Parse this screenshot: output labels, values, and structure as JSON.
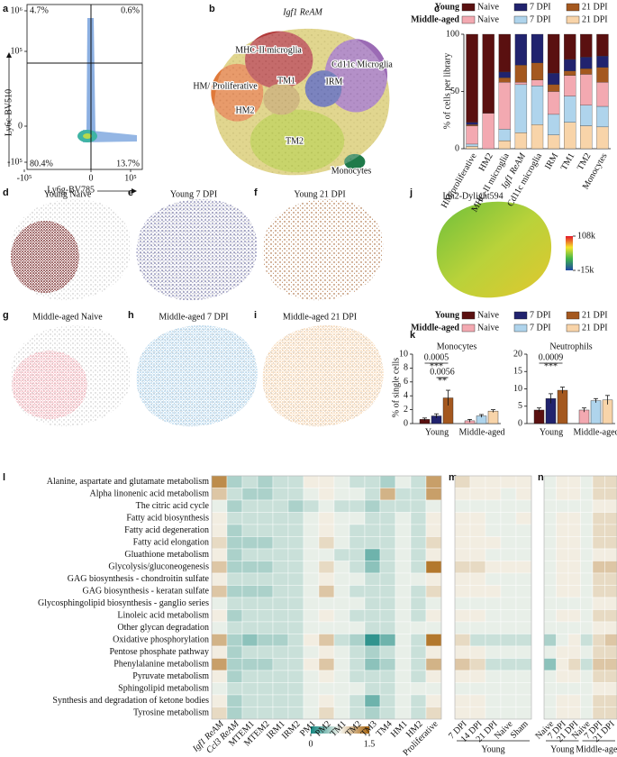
{
  "panels": {
    "a": {
      "label": "a",
      "xlabel": "Ly6g-BV785",
      "ylabel": "Ly6c-BV510",
      "xticks": [
        {
          "value": -100000,
          "label": "-10⁵"
        },
        0,
        {
          "value": 100000,
          "label": "10⁵"
        }
      ],
      "yticks": [
        {
          "value": 1000000,
          "label": "10⁶"
        },
        {
          "value": 100000,
          "label": "10⁵"
        },
        0,
        {
          "value": -100000,
          "label": "-10⁵"
        }
      ],
      "quadrants": {
        "values": [
          4.7,
          0.6,
          80.4,
          13.7
        ],
        "value_labels": [
          "4.7%",
          "0.6%",
          "80.4%",
          "13.7%"
        ]
      }
    },
    "b": {
      "label": "b",
      "clusters": [
        "Igf1 ReAM",
        "MHC-II microglia",
        "Cd11c Microglia",
        "HM/ Proliferative",
        "TM1",
        "IRM",
        "HM2",
        "TM2",
        "Monocytes"
      ]
    },
    "c": {
      "label": "c",
      "type": "bar",
      "stacked": true,
      "ylabel": "% of cells per library",
      "groups": [
        "Young",
        "Middle-aged"
      ],
      "categories": [
        "HM/proliferative",
        "HM2",
        "MHC-II microglia",
        "Igf1 ReAM",
        "Cd11c microglia",
        "IRM",
        "TM1",
        "TM2",
        "Monocytes"
      ],
      "ylim": [
        0,
        100
      ],
      "yticks": [
        0,
        50,
        100
      ],
      "series": [
        {
          "name": "Naive",
          "group": "Young",
          "color": "#5a1010",
          "values": [
            77,
            69,
            33,
            0,
            0,
            34,
            22,
            20,
            19
          ]
        },
        {
          "name": "7 DPI",
          "group": "Young",
          "color": "#21236e",
          "values": [
            2,
            0,
            5,
            27,
            25,
            10,
            10,
            10,
            10
          ]
        },
        {
          "name": "21 DPI",
          "group": "Young",
          "color": "#a4581f",
          "values": [
            1,
            0,
            4,
            15,
            15,
            6,
            4,
            5,
            13
          ]
        },
        {
          "name": "Naive",
          "group": "Middle-aged",
          "color": "#f3a9b1",
          "values": [
            16,
            31,
            41,
            2,
            5,
            20,
            18,
            27,
            21
          ]
        },
        {
          "name": "7 DPI",
          "group": "Middle-aged",
          "color": "#afd4ec",
          "values": [
            2,
            0,
            10,
            42,
            34,
            18,
            23,
            18,
            18
          ]
        },
        {
          "name": "21 DPI",
          "group": "Middle-aged",
          "color": "#f8d4a9",
          "values": [
            2,
            0,
            7,
            14,
            21,
            12,
            23,
            20,
            19
          ]
        }
      ]
    },
    "d": {
      "label": "d",
      "title": "Young Naive"
    },
    "e": {
      "label": "e",
      "title": "Young 7 DPI"
    },
    "f": {
      "label": "f",
      "title": "Young 21 DPI"
    },
    "g": {
      "label": "g",
      "title": "Middle-aged Naive"
    },
    "h": {
      "label": "h",
      "title": "Middle-aged 7 DPI"
    },
    "i": {
      "label": "i",
      "title": "Middle-aged 21 DPI"
    },
    "j": {
      "label": "j",
      "title": "Idh2-Dylight594",
      "colorbar_ticks": [
        {
          "value": 108000,
          "label": "108k"
        },
        {
          "value": -15000,
          "label": "-15k"
        }
      ],
      "colorbar_lim": [
        -15000,
        108000
      ]
    },
    "k": {
      "label": "k",
      "type": "bar",
      "ylabel": "% of single cells",
      "categories": [
        "Young",
        "Middle-aged"
      ],
      "charts": [
        {
          "title": "Monocytes",
          "ylim": [
            0,
            10
          ],
          "yticks": [
            0,
            2,
            4,
            6,
            8,
            10
          ],
          "values": [
            0.6,
            1.1,
            3.7,
            0.4,
            1.1,
            1.8
          ],
          "errors": [
            0.2,
            0.3,
            1.1,
            0.2,
            0.2,
            0.2
          ],
          "pvalues": [
            0.0005,
            0.0056
          ],
          "stars": [
            "***",
            "**"
          ]
        },
        {
          "title": "Neutrophils",
          "ylim": [
            0,
            20
          ],
          "yticks": [
            0,
            5,
            10,
            15,
            20
          ],
          "values": [
            3.9,
            7.2,
            9.6,
            3.9,
            6.6,
            6.8
          ],
          "errors": [
            0.6,
            1.4,
            0.9,
            0.6,
            0.6,
            1.3
          ],
          "pvalues": [
            0.0009
          ],
          "stars": [
            "***"
          ]
        }
      ]
    },
    "l": {
      "label": "l",
      "type": "heatmap",
      "colorbar_lim": [
        0,
        1.5
      ],
      "colorbar_ticks": [
        0,
        1.5
      ],
      "rows": [
        "Alanine, aspartate and glutamate metabolism",
        "Alpha linonenic acid metabolism",
        "The citric acid cycle",
        "Fatty acid biosynthesis",
        "Fatty acid degeneration",
        "Fatty acid elongation",
        "Gluathione metabolism",
        "Glycolysis/gluconeogenesis",
        "GAG biosynthesis - chondroitin sulfate",
        "GAG biosynthesis - keratan sulfate",
        "Glycosphingolipid biosynthesis - ganglio series",
        "Linoleic acid metabolism",
        "Other glycan degradation",
        "Oxidative phosphorylation",
        "Pentose phosphate pathway",
        "Phenylalanine metabolism",
        "Pyruvate metabolism",
        "Sphingolipid metabolism",
        "Synthesis and degradation of ketone bodies",
        "Tyrosine metabolism"
      ],
      "columns": [
        "Igf1 ReAM",
        "Ccl3 ReAM",
        "MTEM1",
        "MTEM2",
        "IRM1",
        "IRM2",
        "PM1",
        "PM2",
        "TM1",
        "TM2",
        "TM3",
        "TM4",
        "HM1",
        "HM2",
        "Proliferative"
      ],
      "values": [
        [
          1.3,
          0.5,
          0.6,
          0.5,
          0.6,
          0.6,
          0.8,
          0.8,
          0.7,
          0.6,
          0.6,
          0.5,
          0.7,
          0.6,
          1.2
        ],
        [
          1.0,
          0.6,
          0.5,
          0.5,
          0.6,
          0.6,
          0.7,
          0.8,
          0.7,
          0.7,
          0.6,
          1.1,
          0.6,
          0.6,
          1.2
        ],
        [
          0.7,
          0.5,
          0.6,
          0.6,
          0.6,
          0.5,
          0.6,
          0.7,
          0.6,
          0.6,
          0.5,
          0.6,
          0.6,
          0.6,
          0.7
        ],
        [
          0.8,
          0.6,
          0.6,
          0.6,
          0.6,
          0.6,
          0.7,
          0.8,
          0.7,
          0.7,
          0.6,
          0.6,
          0.7,
          0.6,
          0.8
        ],
        [
          0.8,
          0.5,
          0.6,
          0.6,
          0.6,
          0.6,
          0.7,
          0.8,
          0.7,
          0.6,
          0.6,
          0.6,
          0.7,
          0.6,
          0.8
        ],
        [
          0.9,
          0.5,
          0.5,
          0.5,
          0.6,
          0.6,
          0.7,
          0.9,
          0.7,
          0.6,
          0.6,
          0.6,
          0.7,
          0.6,
          0.9
        ],
        [
          0.8,
          0.5,
          0.6,
          0.6,
          0.6,
          0.6,
          0.7,
          0.7,
          0.6,
          0.6,
          0.3,
          0.6,
          0.7,
          0.6,
          0.8
        ],
        [
          1.0,
          0.5,
          0.5,
          0.5,
          0.6,
          0.6,
          0.7,
          0.9,
          0.7,
          0.6,
          0.4,
          0.6,
          0.7,
          0.6,
          1.4
        ],
        [
          0.8,
          0.6,
          0.6,
          0.6,
          0.6,
          0.6,
          0.7,
          0.8,
          0.7,
          0.7,
          0.6,
          0.6,
          0.7,
          0.7,
          0.8
        ],
        [
          1.0,
          0.5,
          0.5,
          0.5,
          0.6,
          0.6,
          0.7,
          1.0,
          0.7,
          0.6,
          0.6,
          0.6,
          0.7,
          0.6,
          0.9
        ],
        [
          0.7,
          0.6,
          0.6,
          0.6,
          0.6,
          0.6,
          0.7,
          0.7,
          0.7,
          0.7,
          0.6,
          0.6,
          0.7,
          0.6,
          0.7
        ],
        [
          0.8,
          0.5,
          0.6,
          0.6,
          0.6,
          0.6,
          0.7,
          0.8,
          0.7,
          0.6,
          0.6,
          0.6,
          0.7,
          0.6,
          0.8
        ],
        [
          0.7,
          0.6,
          0.6,
          0.6,
          0.6,
          0.6,
          0.7,
          0.7,
          0.7,
          0.7,
          0.6,
          0.6,
          0.7,
          0.7,
          0.7
        ],
        [
          1.1,
          0.5,
          0.4,
          0.5,
          0.5,
          0.6,
          0.8,
          1.0,
          0.6,
          0.5,
          0.1,
          0.3,
          0.7,
          0.6,
          1.4
        ],
        [
          0.8,
          0.5,
          0.6,
          0.6,
          0.6,
          0.6,
          0.7,
          0.8,
          0.7,
          0.6,
          0.5,
          0.6,
          0.7,
          0.6,
          0.8
        ],
        [
          1.2,
          0.5,
          0.5,
          0.5,
          0.6,
          0.6,
          0.8,
          1.0,
          0.7,
          0.6,
          0.4,
          0.5,
          0.7,
          0.6,
          1.1
        ],
        [
          0.8,
          0.5,
          0.6,
          0.6,
          0.6,
          0.6,
          0.7,
          0.8,
          0.7,
          0.6,
          0.6,
          0.6,
          0.7,
          0.6,
          0.8
        ],
        [
          0.7,
          0.6,
          0.6,
          0.6,
          0.6,
          0.6,
          0.7,
          0.7,
          0.7,
          0.7,
          0.6,
          0.6,
          0.7,
          0.7,
          0.7
        ],
        [
          0.8,
          0.5,
          0.6,
          0.6,
          0.6,
          0.6,
          0.7,
          0.8,
          0.7,
          0.6,
          0.3,
          0.6,
          0.7,
          0.6,
          0.8
        ],
        [
          0.9,
          0.5,
          0.6,
          0.6,
          0.6,
          0.6,
          0.7,
          0.9,
          0.7,
          0.6,
          0.5,
          0.6,
          0.7,
          0.6,
          0.9
        ]
      ]
    },
    "m": {
      "label": "m",
      "columns": [
        "7 DPI",
        "14 DPI",
        "21 DPI",
        "Naive",
        "Sham"
      ],
      "groups": [
        "Young"
      ],
      "values": [
        [
          0.9,
          0.8,
          0.8,
          0.8,
          0.8
        ],
        [
          0.8,
          0.8,
          0.8,
          0.7,
          0.8
        ],
        [
          0.7,
          0.7,
          0.7,
          0.7,
          0.7
        ],
        [
          0.8,
          0.8,
          0.7,
          0.7,
          0.8
        ],
        [
          0.8,
          0.8,
          0.7,
          0.7,
          0.7
        ],
        [
          0.8,
          0.8,
          0.8,
          0.7,
          0.7
        ],
        [
          0.8,
          0.8,
          0.7,
          0.7,
          0.7
        ],
        [
          0.9,
          0.9,
          0.8,
          0.8,
          0.8
        ],
        [
          0.8,
          0.8,
          0.7,
          0.7,
          0.7
        ],
        [
          0.8,
          0.8,
          0.8,
          0.7,
          0.7
        ],
        [
          0.7,
          0.7,
          0.7,
          0.7,
          0.7
        ],
        [
          0.8,
          0.8,
          0.7,
          0.7,
          0.7
        ],
        [
          0.7,
          0.7,
          0.7,
          0.7,
          0.7
        ],
        [
          0.9,
          0.6,
          0.6,
          0.6,
          0.6
        ],
        [
          0.8,
          0.8,
          0.7,
          0.7,
          0.7
        ],
        [
          1.0,
          0.9,
          0.6,
          0.6,
          0.6
        ],
        [
          0.8,
          0.8,
          0.7,
          0.7,
          0.7
        ],
        [
          0.7,
          0.7,
          0.7,
          0.7,
          0.7
        ],
        [
          0.8,
          0.8,
          0.7,
          0.7,
          0.7
        ],
        [
          0.8,
          0.8,
          0.7,
          0.7,
          0.7
        ]
      ]
    },
    "n": {
      "label": "n",
      "columns": [
        "Naive",
        "7 DPI",
        "21 DPI",
        "Naive",
        "7 DPI",
        "21 DPI"
      ],
      "groups": [
        "Young",
        "Middle-aged"
      ],
      "values": [
        [
          0.7,
          0.8,
          0.8,
          0.7,
          0.9,
          0.9
        ],
        [
          0.7,
          0.8,
          0.8,
          0.7,
          0.9,
          0.9
        ],
        [
          0.7,
          0.7,
          0.7,
          0.7,
          0.8,
          0.8
        ],
        [
          0.7,
          0.8,
          0.8,
          0.7,
          0.9,
          0.9
        ],
        [
          0.7,
          0.8,
          0.8,
          0.7,
          0.9,
          0.9
        ],
        [
          0.7,
          0.8,
          0.8,
          0.7,
          0.9,
          0.9
        ],
        [
          0.7,
          0.8,
          0.8,
          0.7,
          0.8,
          0.8
        ],
        [
          0.7,
          0.8,
          0.8,
          0.7,
          1.0,
          1.0
        ],
        [
          0.7,
          0.8,
          0.8,
          0.7,
          0.9,
          0.9
        ],
        [
          0.7,
          0.8,
          0.8,
          0.7,
          0.9,
          0.9
        ],
        [
          0.7,
          0.7,
          0.7,
          0.7,
          0.8,
          0.8
        ],
        [
          0.7,
          0.8,
          0.8,
          0.7,
          0.9,
          0.9
        ],
        [
          0.7,
          0.7,
          0.7,
          0.7,
          0.8,
          0.8
        ],
        [
          0.5,
          0.7,
          0.8,
          0.6,
          0.9,
          1.0
        ],
        [
          0.7,
          0.8,
          0.8,
          0.7,
          0.9,
          0.9
        ],
        [
          0.4,
          0.8,
          0.9,
          0.6,
          1.0,
          1.0
        ],
        [
          0.7,
          0.8,
          0.8,
          0.7,
          0.9,
          0.9
        ],
        [
          0.7,
          0.7,
          0.7,
          0.7,
          0.8,
          0.8
        ],
        [
          0.7,
          0.8,
          0.8,
          0.7,
          0.9,
          0.9
        ],
        [
          0.7,
          0.8,
          0.8,
          0.7,
          0.9,
          0.9
        ]
      ]
    }
  }
}
